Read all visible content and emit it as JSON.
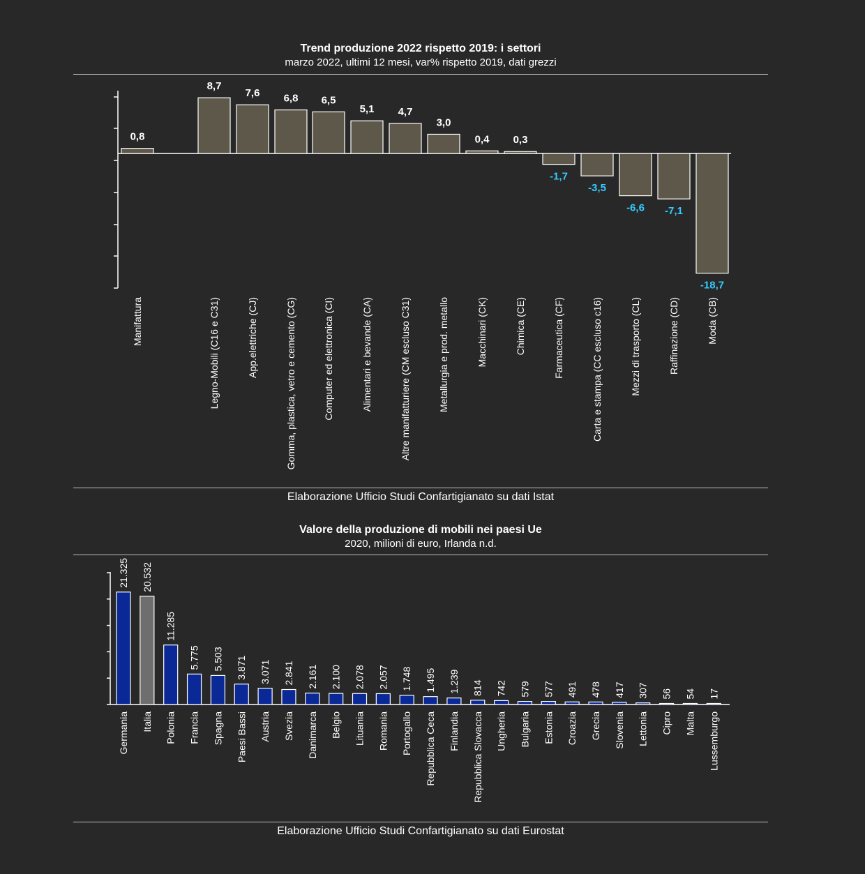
{
  "chart_data": [
    {
      "type": "bar",
      "title": "Trend produzione 2022 rispetto 2019: i settori",
      "subtitle": "marzo 2022, ultimi 12 mesi, var% rispetto 2019, dati grezzi",
      "source": "Elaborazione Ufficio Studi Confartigianato su dati Istat",
      "categories": [
        "Manifattura",
        "Legno-Mobili (C16 e C31)",
        "App.elettriche (CJ)",
        "Gomma, plastica, vetro e cemento (CG)",
        "Computer ed elettronica (CI)",
        "Alimentari e bevande (CA)",
        "Altre manifatturiere (CM escluso C31)",
        "Metallurgia e prod. metallo",
        "Macchinari (CK)",
        "Chimica (CE)",
        "Farmaceutica (CF)",
        "Carta e stampa (CC escluso c16)",
        "Mezzi di trasporto (CL)",
        "Raffinazione (CD)",
        "Moda (CB)"
      ],
      "values": [
        0.8,
        8.7,
        7.6,
        6.8,
        6.5,
        5.1,
        4.7,
        3.0,
        0.4,
        0.3,
        -1.7,
        -3.5,
        -6.6,
        -7.1,
        -18.7
      ],
      "value_labels": [
        "0,8",
        "8,7",
        "7,6",
        "6,8",
        "6,5",
        "5,1",
        "4,7",
        "3,0",
        "0,4",
        "0,3",
        "-1,7",
        "-3,5",
        "-6,6",
        "-7,1",
        "-18,7"
      ],
      "ylim": [
        -20.8,
        9.9
      ],
      "grid": false,
      "colors": {
        "bar": "#5e584a",
        "positive_label": "#ffffff",
        "negative_label": "#33ccff"
      }
    },
    {
      "type": "bar",
      "title": "Valore della produzione di mobili nei paesi Ue",
      "subtitle": "2020, milioni di euro, Irlanda n.d.",
      "source": "Elaborazione Ufficio Studi Confartigianato su dati Eurostat",
      "categories": [
        "Germania",
        "Italia",
        "Polonia",
        "Francia",
        "Spagna",
        "Paesi Bassi",
        "Austria",
        "Svezia",
        "Danimarca",
        "Belgio",
        "Lituania",
        "Romania",
        "Portogallo",
        "Repubblica Ceca",
        "Finlandia",
        "Repubblica Slovacca",
        "Ungheria",
        "Bulgaria",
        "Estonia",
        "Croazia",
        "Grecia",
        "Slovenia",
        "Lettonia",
        "Cipro",
        "Malta",
        "Lussemburgo"
      ],
      "values": [
        21325,
        20532,
        11285,
        5775,
        5503,
        3871,
        3071,
        2841,
        2161,
        2100,
        2078,
        2057,
        1748,
        1495,
        1239,
        814,
        742,
        579,
        577,
        491,
        478,
        417,
        307,
        56,
        54,
        17
      ],
      "value_labels": [
        "21.325",
        "20.532",
        "11.285",
        "5.775",
        "5.503",
        "3.871",
        "3.071",
        "2.841",
        "2.161",
        "2.100",
        "2.078",
        "2.057",
        "1.748",
        "1.495",
        "1.239",
        "814",
        "742",
        "579",
        "577",
        "491",
        "478",
        "417",
        "307",
        "56",
        "54",
        "17"
      ],
      "ylim": [
        0,
        25000
      ],
      "grid": false,
      "colors": {
        "bar": "#0a2896",
        "highlight": "#6e6e6e",
        "label": "#ffffff"
      },
      "highlight_category": "Italia"
    }
  ]
}
